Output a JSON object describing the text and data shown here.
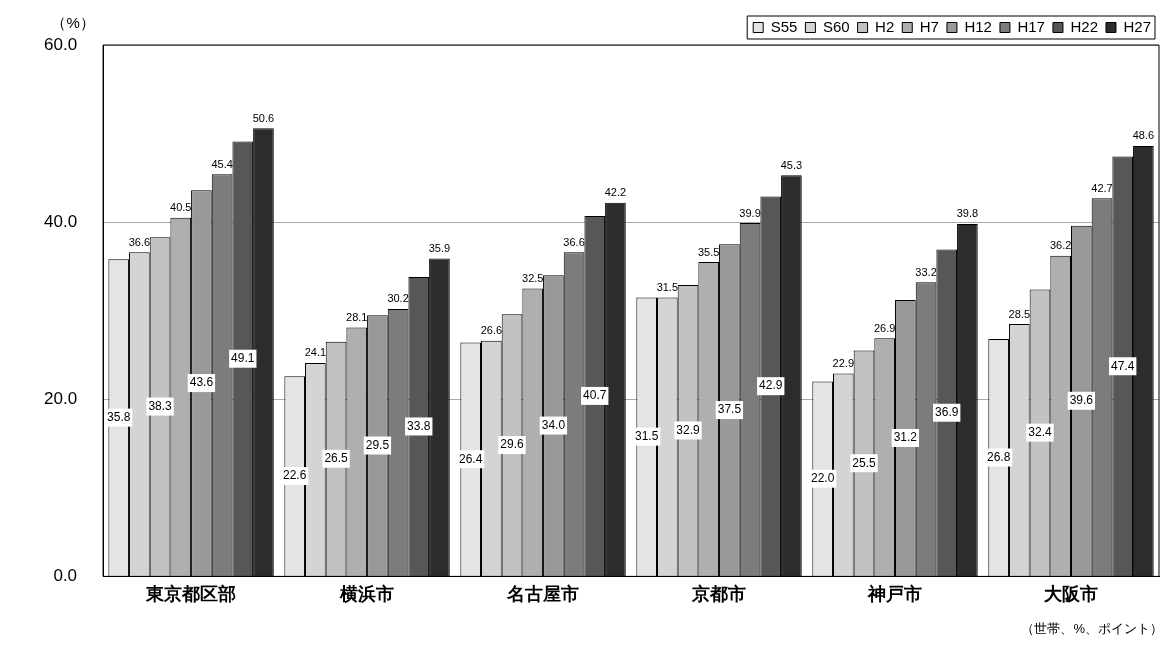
{
  "chart_data": {
    "type": "bar",
    "ylabel": "（%）",
    "categories": [
      "東京都区部",
      "横浜市",
      "名古屋市",
      "京都市",
      "神戸市",
      "大阪市"
    ],
    "series": [
      {
        "name": "S55",
        "color": "#e4e4e4",
        "values": [
          35.8,
          22.6,
          26.4,
          31.5,
          22.0,
          26.8
        ],
        "value_labels": [
          "35.8",
          "22.6",
          "26.4",
          "31.5",
          "22.0",
          "26.8"
        ]
      },
      {
        "name": "S60",
        "color": "#d4d4d4",
        "values": [
          36.6,
          24.1,
          26.6,
          31.5,
          22.9,
          28.5
        ],
        "value_labels": [
          "36.6",
          "24.1",
          "26.6",
          "31.5",
          "22.9",
          "28.5"
        ]
      },
      {
        "name": "H2",
        "color": "#c2c2c2",
        "values": [
          38.3,
          26.5,
          29.6,
          32.9,
          25.5,
          32.4
        ],
        "value_labels": [
          "38.3",
          "26.5",
          "29.6",
          "32.9",
          "25.5",
          "32.4"
        ]
      },
      {
        "name": "H7",
        "color": "#afafaf",
        "values": [
          40.5,
          28.1,
          32.5,
          35.5,
          26.9,
          36.2
        ],
        "value_labels": [
          "40.5",
          "28.1",
          "32.5",
          "35.5",
          "26.9",
          "36.2"
        ]
      },
      {
        "name": "H12",
        "color": "#999999",
        "values": [
          43.6,
          29.5,
          34.0,
          37.5,
          31.2,
          39.6
        ],
        "value_labels": [
          "43.6",
          "29.5",
          "34.0",
          "37.5",
          "31.2",
          "39.6"
        ]
      },
      {
        "name": "H17",
        "color": "#7c7c7c",
        "values": [
          45.4,
          30.2,
          36.6,
          39.9,
          33.2,
          42.7
        ],
        "value_labels": [
          "45.4",
          "30.2",
          "36.6",
          "39.9",
          "33.2",
          "42.7"
        ]
      },
      {
        "name": "H22",
        "color": "#575757",
        "values": [
          49.1,
          33.8,
          40.7,
          42.9,
          36.9,
          47.4
        ],
        "value_labels": [
          "49.1",
          "33.8",
          "40.7",
          "42.9",
          "36.9",
          "47.4"
        ]
      },
      {
        "name": "H27",
        "color": "#2c2c2c",
        "values": [
          50.6,
          35.9,
          42.2,
          45.3,
          39.8,
          48.6
        ],
        "value_labels": [
          "50.6",
          "35.9",
          "42.2",
          "45.3",
          "39.8",
          "48.6"
        ]
      }
    ],
    "ylim": [
      0,
      60
    ],
    "yticks": [
      {
        "value": 0,
        "label": "0.0"
      },
      {
        "value": 20,
        "label": "20.0"
      },
      {
        "value": 40,
        "label": "40.0"
      },
      {
        "value": 60,
        "label": "60.0"
      }
    ],
    "grid": "y",
    "legend": "top",
    "annotations": [
      "（世帯、%、ポイント）"
    ]
  }
}
